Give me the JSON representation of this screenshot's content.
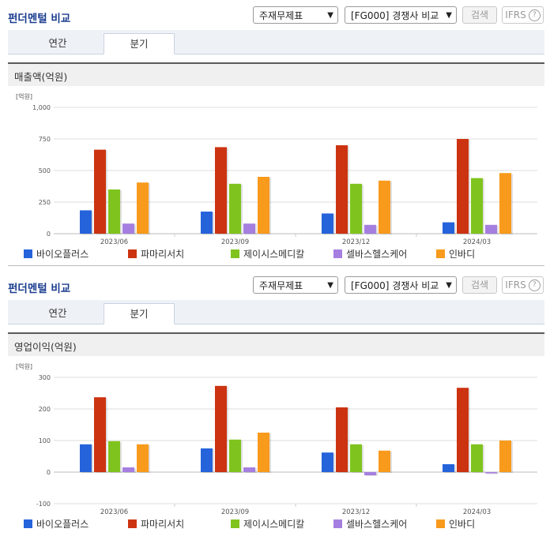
{
  "colors": {
    "series": [
      "#2563db",
      "#cc3311",
      "#7fc41e",
      "#a57fe0",
      "#f89a1c"
    ],
    "grid": "#dddddd"
  },
  "panels": [
    {
      "title": "펀더멘털 비교",
      "select_statement": "주재무제표",
      "select_compare": "[FG000] 경쟁사 비교",
      "search_label": "검색",
      "ifrs_label": "IFRS",
      "help_label": "?",
      "tabs": [
        "연간",
        "분기"
      ],
      "active_tab": 1,
      "subheading": "매출액(억원)",
      "unit": "[억원]"
    },
    {
      "title": "펀더멘털 비교",
      "select_statement": "주재무제표",
      "select_compare": "[FG000] 경쟁사 비교",
      "search_label": "검색",
      "ifrs_label": "IFRS",
      "help_label": "?",
      "tabs": [
        "연간",
        "분기"
      ],
      "active_tab": 1,
      "subheading": "영업이익(억원)",
      "unit": "[억원]"
    }
  ],
  "chart_data": [
    {
      "type": "bar",
      "categories": [
        "2023/06",
        "2023/09",
        "2023/12",
        "2024/03"
      ],
      "ylim": [
        0,
        1000
      ],
      "yticks": [
        0,
        250,
        500,
        750,
        1000
      ],
      "ytick_labels": [
        "0",
        "250",
        "500",
        "750",
        "1,000"
      ],
      "ylabel": "[억원]",
      "legend_position": "bottom",
      "series": [
        {
          "name": "바이오플러스",
          "values": [
            185,
            175,
            160,
            90
          ]
        },
        {
          "name": "파마리서치",
          "values": [
            665,
            685,
            700,
            750
          ]
        },
        {
          "name": "제이시스메디칼",
          "values": [
            350,
            395,
            395,
            440
          ]
        },
        {
          "name": "셀바스헬스케어",
          "values": [
            80,
            80,
            70,
            70
          ]
        },
        {
          "name": "인바디",
          "values": [
            405,
            450,
            420,
            480
          ]
        }
      ]
    },
    {
      "type": "bar",
      "categories": [
        "2023/06",
        "2023/09",
        "2023/12",
        "2024/03"
      ],
      "ylim": [
        -100,
        300
      ],
      "yticks": [
        -100,
        0,
        100,
        200,
        300
      ],
      "ytick_labels": [
        "-100",
        "0",
        "100",
        "200",
        "300"
      ],
      "ylabel": "[억원]",
      "legend_position": "bottom",
      "series": [
        {
          "name": "바이오플러스",
          "values": [
            88,
            75,
            62,
            25
          ]
        },
        {
          "name": "파마리서치",
          "values": [
            237,
            273,
            205,
            267
          ]
        },
        {
          "name": "제이시스메디칼",
          "values": [
            98,
            103,
            88,
            88
          ]
        },
        {
          "name": "셀바스헬스케어",
          "values": [
            15,
            15,
            -10,
            -4
          ]
        },
        {
          "name": "인바디",
          "values": [
            88,
            125,
            68,
            100
          ]
        }
      ]
    }
  ]
}
